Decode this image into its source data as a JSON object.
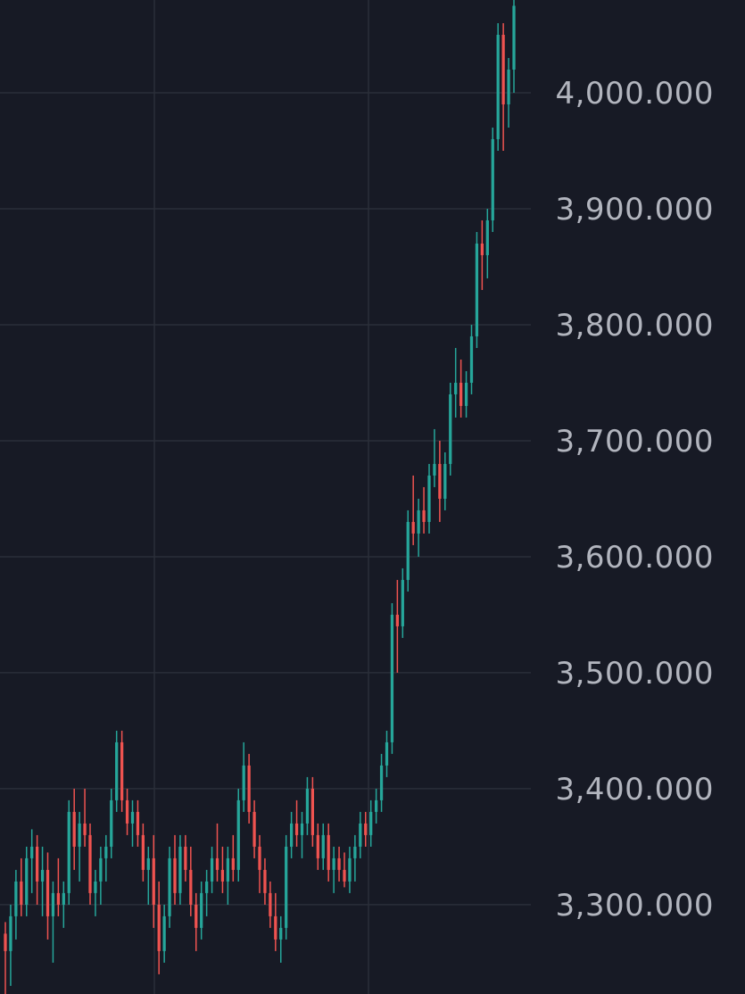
{
  "theme": {
    "background": "#171a25",
    "grid_color": "#2a2e39",
    "up_color": "#26a69a",
    "down_color": "#ef5350",
    "axis_text_color": "#b2b5be"
  },
  "chart_data": {
    "type": "candlestick",
    "title": "",
    "xlabel": "",
    "ylabel": "",
    "ylim": [
      3223.0,
      4080.0
    ],
    "grid": true,
    "price_axis_position": "right",
    "y_ticks": [
      {
        "value": 4000,
        "label": "4,000.000"
      },
      {
        "value": 3900,
        "label": "3,900.000"
      },
      {
        "value": 3800,
        "label": "3,800.000"
      },
      {
        "value": 3700,
        "label": "3,700.000"
      },
      {
        "value": 3600,
        "label": "3,600.000"
      },
      {
        "value": 3500,
        "label": "3,500.000"
      },
      {
        "value": 3400,
        "label": "3,400.000"
      },
      {
        "value": 3300,
        "label": "3,300.000"
      }
    ],
    "ohlc_points": [
      [
        3275,
        3285,
        3223,
        3260
      ],
      [
        3260,
        3300,
        3230,
        3290
      ],
      [
        3290,
        3330,
        3270,
        3320
      ],
      [
        3320,
        3340,
        3290,
        3300
      ],
      [
        3300,
        3350,
        3290,
        3340
      ],
      [
        3340,
        3365,
        3310,
        3350
      ],
      [
        3350,
        3360,
        3300,
        3320
      ],
      [
        3320,
        3350,
        3290,
        3330
      ],
      [
        3330,
        3345,
        3270,
        3290
      ],
      [
        3290,
        3320,
        3250,
        3310
      ],
      [
        3310,
        3340,
        3290,
        3300
      ],
      [
        3300,
        3320,
        3280,
        3310
      ],
      [
        3310,
        3390,
        3300,
        3380
      ],
      [
        3380,
        3400,
        3330,
        3350
      ],
      [
        3350,
        3380,
        3320,
        3370
      ],
      [
        3370,
        3400,
        3350,
        3360
      ],
      [
        3360,
        3370,
        3300,
        3310
      ],
      [
        3310,
        3330,
        3290,
        3320
      ],
      [
        3320,
        3350,
        3300,
        3340
      ],
      [
        3340,
        3360,
        3320,
        3350
      ],
      [
        3350,
        3400,
        3340,
        3390
      ],
      [
        3390,
        3450,
        3380,
        3440
      ],
      [
        3440,
        3450,
        3380,
        3390
      ],
      [
        3390,
        3400,
        3360,
        3370
      ],
      [
        3370,
        3390,
        3350,
        3380
      ],
      [
        3380,
        3390,
        3350,
        3360
      ],
      [
        3360,
        3370,
        3320,
        3330
      ],
      [
        3330,
        3350,
        3300,
        3340
      ],
      [
        3340,
        3360,
        3280,
        3300
      ],
      [
        3300,
        3320,
        3240,
        3260
      ],
      [
        3260,
        3300,
        3250,
        3290
      ],
      [
        3290,
        3350,
        3280,
        3340
      ],
      [
        3340,
        3360,
        3300,
        3310
      ],
      [
        3310,
        3360,
        3300,
        3350
      ],
      [
        3350,
        3360,
        3320,
        3330
      ],
      [
        3330,
        3350,
        3290,
        3300
      ],
      [
        3300,
        3310,
        3260,
        3280
      ],
      [
        3280,
        3320,
        3270,
        3310
      ],
      [
        3310,
        3330,
        3290,
        3320
      ],
      [
        3320,
        3350,
        3310,
        3340
      ],
      [
        3340,
        3370,
        3320,
        3330
      ],
      [
        3330,
        3350,
        3310,
        3320
      ],
      [
        3320,
        3350,
        3300,
        3340
      ],
      [
        3340,
        3360,
        3320,
        3330
      ],
      [
        3330,
        3400,
        3320,
        3390
      ],
      [
        3390,
        3440,
        3380,
        3420
      ],
      [
        3420,
        3430,
        3370,
        3380
      ],
      [
        3380,
        3390,
        3340,
        3350
      ],
      [
        3350,
        3360,
        3310,
        3330
      ],
      [
        3330,
        3340,
        3300,
        3310
      ],
      [
        3310,
        3320,
        3280,
        3290
      ],
      [
        3290,
        3310,
        3260,
        3270
      ],
      [
        3270,
        3290,
        3250,
        3280
      ],
      [
        3280,
        3360,
        3270,
        3350
      ],
      [
        3350,
        3380,
        3340,
        3370
      ],
      [
        3370,
        3390,
        3350,
        3360
      ],
      [
        3360,
        3380,
        3340,
        3370
      ],
      [
        3370,
        3410,
        3360,
        3400
      ],
      [
        3400,
        3410,
        3350,
        3360
      ],
      [
        3360,
        3370,
        3330,
        3340
      ],
      [
        3340,
        3370,
        3330,
        3360
      ],
      [
        3360,
        3370,
        3320,
        3330
      ],
      [
        3330,
        3350,
        3310,
        3340
      ],
      [
        3340,
        3350,
        3320,
        3330
      ],
      [
        3330,
        3345,
        3315,
        3320
      ],
      [
        3320,
        3350,
        3310,
        3340
      ],
      [
        3340,
        3360,
        3320,
        3350
      ],
      [
        3350,
        3380,
        3340,
        3370
      ],
      [
        3370,
        3380,
        3350,
        3360
      ],
      [
        3360,
        3390,
        3350,
        3380
      ],
      [
        3380,
        3400,
        3370,
        3390
      ],
      [
        3390,
        3430,
        3380,
        3420
      ],
      [
        3420,
        3450,
        3410,
        3440
      ],
      [
        3440,
        3560,
        3430,
        3550
      ],
      [
        3550,
        3580,
        3500,
        3540
      ],
      [
        3540,
        3590,
        3530,
        3580
      ],
      [
        3580,
        3640,
        3570,
        3630
      ],
      [
        3630,
        3670,
        3610,
        3620
      ],
      [
        3620,
        3650,
        3600,
        3640
      ],
      [
        3640,
        3660,
        3620,
        3630
      ],
      [
        3630,
        3680,
        3620,
        3670
      ],
      [
        3670,
        3710,
        3660,
        3680
      ],
      [
        3680,
        3700,
        3630,
        3650
      ],
      [
        3650,
        3690,
        3640,
        3680
      ],
      [
        3680,
        3750,
        3670,
        3740
      ],
      [
        3740,
        3780,
        3720,
        3750
      ],
      [
        3750,
        3770,
        3720,
        3730
      ],
      [
        3730,
        3760,
        3720,
        3750
      ],
      [
        3750,
        3800,
        3740,
        3790
      ],
      [
        3790,
        3880,
        3780,
        3870
      ],
      [
        3870,
        3890,
        3830,
        3860
      ],
      [
        3860,
        3900,
        3840,
        3890
      ],
      [
        3890,
        3970,
        3880,
        3960
      ],
      [
        3960,
        4060,
        3950,
        4050
      ],
      [
        4050,
        4060,
        3950,
        3990
      ],
      [
        3990,
        4030,
        3970,
        4020
      ],
      [
        4020,
        4080,
        4000,
        4075
      ]
    ]
  }
}
